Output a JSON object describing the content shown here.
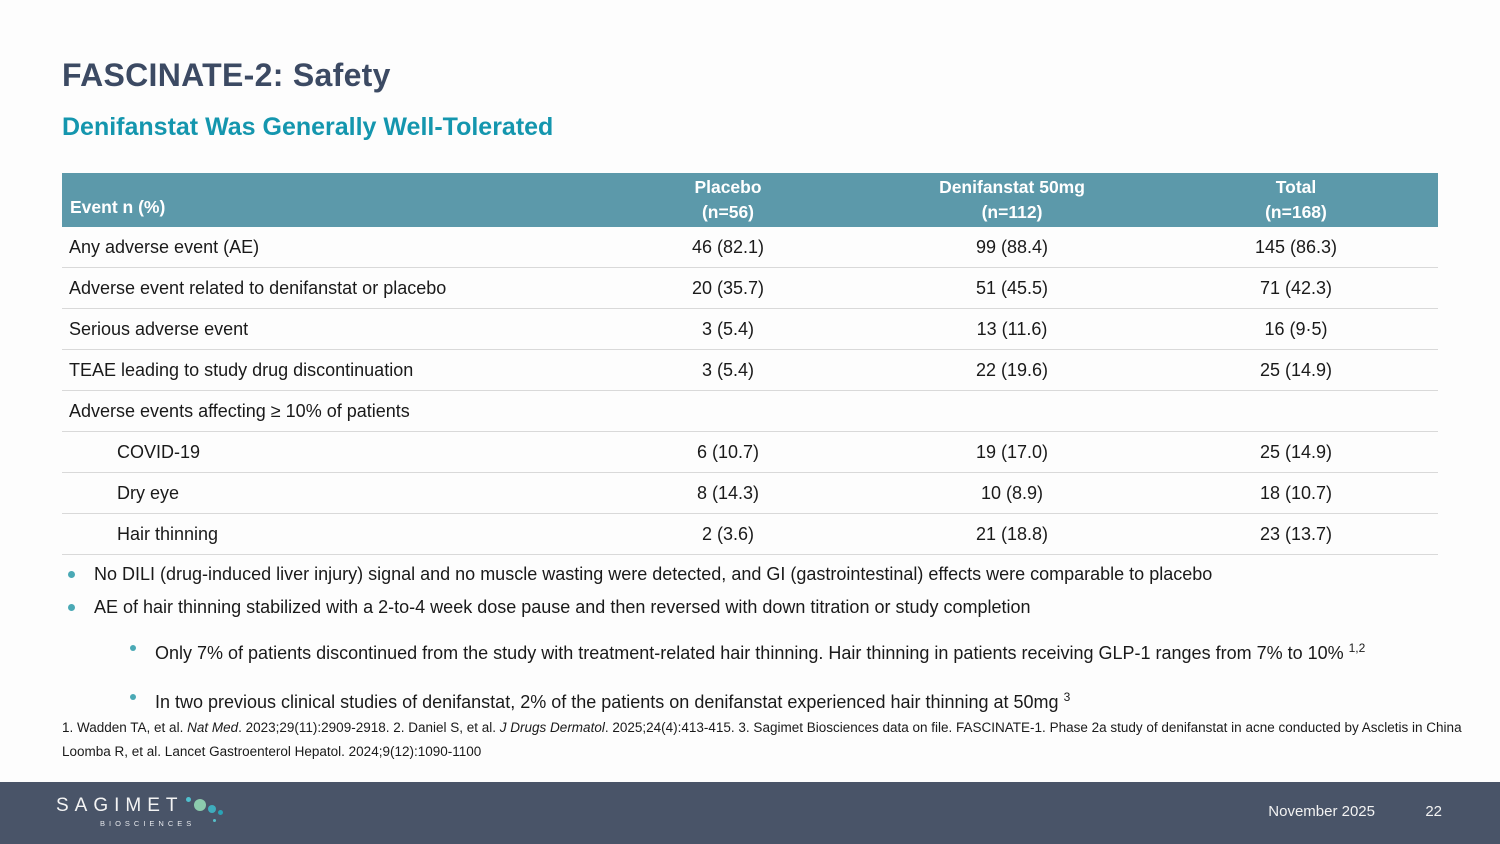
{
  "slide": {
    "title": "FASCINATE-2: Safety",
    "subtitle": "Denifanstat Was Generally Well-Tolerated"
  },
  "colors": {
    "title": "#3C4A63",
    "subtitle": "#1496AE",
    "table_header_bg": "#5C99AA",
    "bullet_dot": "#4AA9B5",
    "footer_bg": "#495468"
  },
  "table": {
    "header": {
      "event": "Event n (%)",
      "placebo_line1": "Placebo",
      "placebo_line2": "(n=56)",
      "denifanstat_line1": "Denifanstat 50mg",
      "denifanstat_line2": "(n=112)",
      "total_line1": "Total",
      "total_line2": "(n=168)"
    },
    "rows": [
      {
        "label": "Any adverse event (AE)",
        "placebo": "46 (82.1)",
        "denifanstat": "99 (88.4)",
        "total": "145 (86.3)"
      },
      {
        "label": "Adverse event related to denifanstat or placebo",
        "placebo": "20 (35.7)",
        "denifanstat": "51 (45.5)",
        "total": "71 (42.3)"
      },
      {
        "label": "Serious adverse event",
        "placebo": "3 (5.4)",
        "denifanstat": "13 (11.6)",
        "total": "16 (9·5)"
      },
      {
        "label": "TEAE leading to study drug discontinuation",
        "placebo": "3 (5.4)",
        "denifanstat": "22 (19.6)",
        "total": "25 (14.9)"
      },
      {
        "label": "Adverse events affecting ≥ 10% of patients",
        "placebo": "",
        "denifanstat": "",
        "total": ""
      },
      {
        "label": "COVID-19",
        "placebo": "6 (10.7)",
        "denifanstat": "19 (17.0)",
        "total": "25 (14.9)"
      },
      {
        "label": "Dry eye",
        "placebo": "8 (14.3)",
        "denifanstat": "10 (8.9)",
        "total": "18 (10.7)"
      },
      {
        "label": "Hair thinning",
        "placebo": "2 (3.6)",
        "denifanstat": "21 (18.8)",
        "total": "23 (13.7)"
      }
    ]
  },
  "bullets": {
    "level1": [
      {
        "text": "No DILI (drug-induced liver injury) signal and no muscle wasting were detected, and GI (gastrointestinal) effects were comparable to placebo"
      },
      {
        "text": "AE of hair thinning stabilized with a 2-to-4 week dose pause and then reversed with down titration or study completion"
      }
    ],
    "level2": [
      {
        "text": "Only 7% of patients discontinued from the study with treatment-related hair thinning. Hair thinning in patients receiving GLP-1 ranges from 7% to 10% ",
        "sup": "1,2"
      },
      {
        "text": "In two previous clinical studies of denifanstat, 2% of the patients on denifanstat experienced hair thinning at 50mg ",
        "sup": "3"
      }
    ]
  },
  "footnotes": {
    "line1_p1": "1. Wadden TA, et al. ",
    "line1_i1": "Nat Med",
    "line1_p2": ". 2023;29(11):2909-2918. 2. Daniel S, et al. ",
    "line1_i2": "J Drugs Dermatol",
    "line1_p3": ". 2025;24(4):413-415. 3. Sagimet Biosciences data on file. FASCINATE-1. Phase 2a study of denifanstat in acne conducted by Ascletis in China",
    "line2": "Loomba R, et al. Lancet Gastroenterol Hepatol. 2024;9(12):1090-1100"
  },
  "footer": {
    "logo_name": "SAGIMET",
    "logo_sub": "BIOSCIENCES",
    "date": "November 2025",
    "page": "22"
  }
}
